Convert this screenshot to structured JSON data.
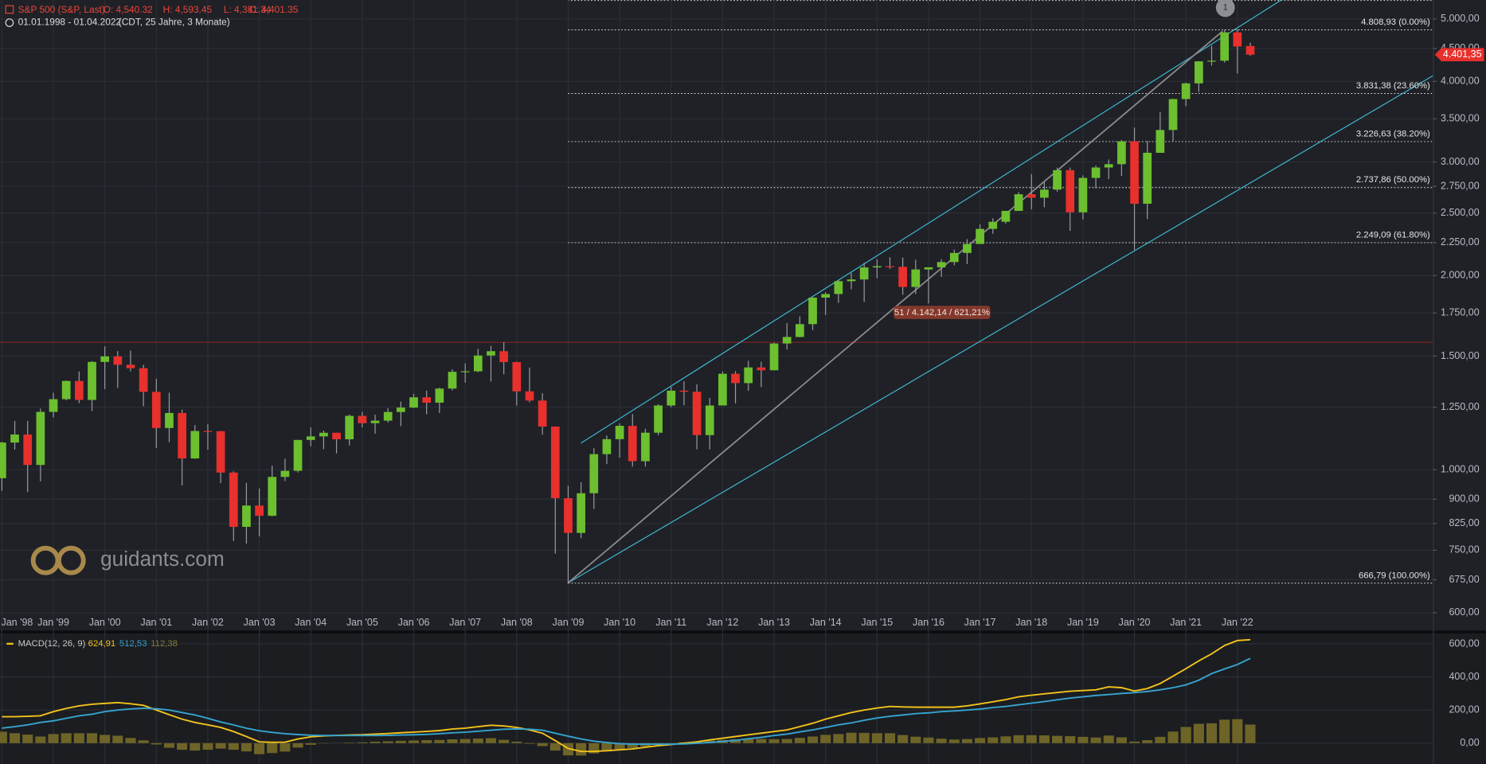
{
  "chart_data": [
    {
      "type": "candlestick",
      "title": "S&P 500 (S&P, Last)",
      "ohlc_labels": [
        "O: 4,540.32",
        "H: 4,593.45",
        "L: 4,381.34",
        "C: 4,401.35"
      ],
      "subtitle": "01.01.1998 - 01.04.2022",
      "subtitle_note": "(CDT, 25 Jahre, 3 Monate)",
      "watermark": "guidants.com",
      "marker_label": "1",
      "annotation": "51 / 4.142,14 / 621,21%",
      "log_y": true,
      "grid": true,
      "up_color": "#6cbf2e",
      "down_color": "#e8302c",
      "ylim": [
        565,
        5350
      ],
      "yticks": [
        {
          "value": 5000,
          "label": "5.000,00"
        },
        {
          "value": 4500,
          "label": "4.500,00"
        },
        {
          "value": 4000,
          "label": "4.000,00"
        },
        {
          "value": 3500,
          "label": "3.500,00"
        },
        {
          "value": 3000,
          "label": "3.000,00"
        },
        {
          "value": 2750,
          "label": "2.750,00"
        },
        {
          "value": 2500,
          "label": "2.500,00"
        },
        {
          "value": 2250,
          "label": "2.250,00"
        },
        {
          "value": 2000,
          "label": "2.000,00"
        },
        {
          "value": 1750,
          "label": "1.750,00"
        },
        {
          "value": 1500,
          "label": "1.500,00"
        },
        {
          "value": 1250,
          "label": "1.250,00"
        },
        {
          "value": 1000,
          "label": "1.000,00"
        },
        {
          "value": 900,
          "label": "900,00"
        },
        {
          "value": 825,
          "label": "825,00"
        },
        {
          "value": 750,
          "label": "750,00"
        },
        {
          "value": 675,
          "label": "675,00"
        },
        {
          "value": 600,
          "label": "600,00"
        }
      ],
      "levels": [
        {
          "value": 4808.93,
          "label": "4.808,93 (0.00%)"
        },
        {
          "value": 3831.38,
          "label": "3.831,38 (23.60%)"
        },
        {
          "value": 3226.63,
          "label": "3.226,63 (38.20%)"
        },
        {
          "value": 2737.86,
          "label": "2.737,86 (50.00%)"
        },
        {
          "value": 2249.09,
          "label": "2.249,09 (61.80%)"
        },
        {
          "value": 666.79,
          "label": "666,79 (100.00%)"
        }
      ],
      "hline": 1576,
      "current_price": {
        "value": 4401.35,
        "label": "4.401,35"
      },
      "categories": [
        "Jan '98",
        null,
        null,
        null,
        "Jan '99",
        null,
        null,
        null,
        "Jan '00",
        null,
        null,
        null,
        "Jan '01",
        null,
        null,
        null,
        "Jan '02",
        null,
        null,
        null,
        "Jan '03",
        null,
        null,
        null,
        "Jan '04",
        null,
        null,
        null,
        "Jan '05",
        null,
        null,
        null,
        "Jan '06",
        null,
        null,
        null,
        "Jan '07",
        null,
        null,
        null,
        "Jan '08",
        null,
        null,
        null,
        "Jan '09",
        null,
        null,
        null,
        "Jan '10",
        null,
        null,
        null,
        "Jan '11",
        null,
        null,
        null,
        "Jan '12",
        null,
        null,
        null,
        "Jan '13",
        null,
        null,
        null,
        "Jan '14",
        null,
        null,
        null,
        "Jan '15",
        null,
        null,
        null,
        "Jan '16",
        null,
        null,
        null,
        "Jan '17",
        null,
        null,
        null,
        "Jan '18",
        null,
        null,
        null,
        "Jan '19",
        null,
        null,
        null,
        "Jan '20",
        null,
        null,
        null,
        "Jan '21",
        null,
        null,
        null,
        "Jan '22",
        null
      ],
      "open": [
        970,
        1101.75,
        1133.84,
        1017.01,
        1229.23,
        1286.37,
        1372.71,
        1282.71,
        1469.25,
        1498.58,
        1454.6,
        1436.51,
        1320.28,
        1160.33,
        1224.42,
        1040.94,
        1148.08,
        1147.39,
        989.82,
        815.28,
        879.82,
        848.18,
        974.5,
        995.97,
        1111.92,
        1126.21,
        1140.84,
        1114.58,
        1211.92,
        1180.59,
        1191.33,
        1228.81,
        1248.29,
        1294.83,
        1270.2,
        1335.85,
        1418.3,
        1420.86,
        1503.35,
        1526.75,
        1468.36,
        1322.7,
        1280,
        1166.36,
        903.25,
        797.87,
        919.32,
        1057.08,
        1115.1,
        1169.43,
        1030.71,
        1141.2,
        1257.64,
        1325.83,
        1320.64,
        1131.42,
        1257.6,
        1408.47,
        1362.16,
        1440.67,
        1426.19,
        1569.19,
        1606.28,
        1681.55,
        1848.36,
        1872.34,
        1960.23,
        1972.29,
        2058.9,
        2067.89,
        2063.11,
        1920.03,
        2043.94,
        2059.74,
        2098.86,
        2168.27,
        2238.83,
        2362.72,
        2423.41,
        2519.36,
        2673.61,
        2640.87,
        2718.37,
        2913.98,
        2506.85,
        2834.4,
        2941.76,
        2976.74,
        3230.78,
        2584.59,
        3100.29,
        3363,
        3756.07,
        3972.89,
        4297.5,
        4307.54,
        4766.18,
        4540.32
      ],
      "high": [
        1105,
        1190,
        1190,
        1244,
        1316,
        1375,
        1420,
        1473,
        1553,
        1527,
        1530,
        1454,
        1383,
        1316,
        1239,
        1173,
        1176,
        1147,
        994,
        954,
        935,
        1015,
        1040,
        1112,
        1163,
        1150,
        1141,
        1218,
        1229,
        1217,
        1246,
        1275,
        1311,
        1326,
        1340,
        1431,
        1461,
        1540,
        1556,
        1576,
        1471,
        1440,
        1314,
        1167,
        944,
        956,
        1080,
        1130,
        1180,
        1220,
        1157,
        1263,
        1344,
        1371,
        1356,
        1292,
        1420,
        1422,
        1475,
        1470,
        1574,
        1688,
        1729,
        1850,
        1884,
        1968,
        2019,
        2093,
        2119,
        2135,
        2133,
        2116,
        2044,
        2120,
        2194,
        2278,
        2401,
        2454,
        2520,
        2695,
        2873,
        2791,
        2940,
        2941,
        2860,
        2964,
        3028,
        3247,
        3393,
        3233,
        3588,
        3760,
        3983,
        4302,
        4545,
        4808.93,
        4818,
        4593.45
      ],
      "low": [
        927,
        1074,
        923,
        959,
        1205,
        1281,
        1268,
        1233,
        1333,
        1339,
        1420,
        1254,
        1081,
        1103,
        945,
        1040,
        1074,
        953,
        775,
        768,
        788,
        847,
        960,
        990,
        1087,
        1076,
        1060,
        1090,
        1163,
        1137,
        1183,
        1168,
        1245,
        1219,
        1224,
        1327,
        1364,
        1416,
        1370,
        1406,
        1257,
        1272,
        1133,
        741,
        666.79,
        783,
        869,
        1020,
        1044,
        1011,
        1011,
        1131,
        1250,
        1259,
        1075,
        1075,
        1258,
        1267,
        1325,
        1343,
        1426,
        1536,
        1604,
        1646,
        1737,
        1814,
        1905,
        1820,
        1981,
        2048,
        1867,
        1872,
        1810,
        1991,
        2074,
        2084,
        2245,
        2322,
        2406,
        2520,
        2533,
        2553,
        2698,
        2346,
        2444,
        2728,
        2822,
        2855,
        2191,
        2447,
        3101,
        3233,
        3662,
        3853,
        4233,
        4278,
        4114,
        4381.34
      ],
      "close": [
        1101.75,
        1133.84,
        1017.01,
        1229.23,
        1286.37,
        1372.71,
        1282.71,
        1469.25,
        1498.58,
        1454.6,
        1436.51,
        1320.28,
        1160.33,
        1224.42,
        1040.94,
        1148.08,
        1147.39,
        989.82,
        815.28,
        879.82,
        848.18,
        974.5,
        995.97,
        1111.92,
        1126.21,
        1140.84,
        1114.58,
        1211.92,
        1180.59,
        1191.33,
        1228.81,
        1248.29,
        1294.83,
        1270.2,
        1335.85,
        1418.3,
        1420.86,
        1503.35,
        1526.75,
        1468.36,
        1322.7,
        1280,
        1166.36,
        903.25,
        797.87,
        919.32,
        1057.08,
        1115.1,
        1169.43,
        1030.71,
        1141.2,
        1257.64,
        1325.83,
        1320.64,
        1131.42,
        1257.6,
        1408.47,
        1362.16,
        1440.67,
        1426.19,
        1569.19,
        1606.28,
        1681.55,
        1848.36,
        1872.34,
        1960.23,
        1972.29,
        2058.9,
        2067.89,
        2063.11,
        1920.03,
        2043.94,
        2059.74,
        2098.86,
        2168.27,
        2238.83,
        2362.72,
        2423.41,
        2519.36,
        2673.61,
        2640.87,
        2718.37,
        2913.98,
        2506.85,
        2834.4,
        2941.76,
        2976.74,
        3230.78,
        2584.59,
        3100.29,
        3363,
        3756.07,
        3972.89,
        4297.5,
        4307.54,
        4766.18,
        4530.41,
        4401.35
      ]
    },
    {
      "type": "line",
      "title": "MACD(12, 26, 9)",
      "ylim": [
        -126,
        669
      ],
      "yticks": [
        {
          "value": 600,
          "label": "600,00"
        },
        {
          "value": 400,
          "label": "400,00"
        },
        {
          "value": 200,
          "label": "200,00"
        },
        {
          "value": 0,
          "label": "0,00"
        }
      ],
      "series": [
        {
          "color": "#f2c21b",
          "last_label": "624,91",
          "values": [
            160,
            160,
            162,
            165,
            190,
            210,
            225,
            235,
            240,
            245,
            238,
            228,
            200,
            172,
            145,
            125,
            110,
            95,
            70,
            40,
            8,
            5,
            6,
            25,
            38,
            44,
            47,
            49,
            51,
            55,
            58,
            63,
            67,
            71,
            76,
            85,
            91,
            100,
            108,
            104,
            95,
            80,
            60,
            15,
            -32,
            -50,
            -50,
            -46,
            -40,
            -35,
            -25,
            -15,
            -8,
            0,
            8,
            20,
            30,
            40,
            50,
            60,
            70,
            80,
            100,
            120,
            145,
            165,
            185,
            200,
            212,
            222,
            219,
            217,
            217,
            217,
            217,
            225,
            237,
            250,
            263,
            280,
            290,
            298,
            306,
            314,
            318,
            322,
            340,
            335,
            315,
            330,
            360,
            405,
            450,
            497,
            540,
            590,
            620,
            624.91
          ]
        },
        {
          "color": "#36a3cf",
          "last_label": "512,53",
          "values": [
            91,
            100,
            110,
            125,
            135,
            150,
            165,
            175,
            190,
            200,
            207,
            211,
            208,
            200,
            185,
            170,
            150,
            128,
            110,
            90,
            75,
            65,
            57,
            52,
            48,
            46,
            46,
            46,
            46,
            46,
            47,
            49,
            51,
            53,
            57,
            62,
            66,
            72,
            78,
            84,
            86,
            84,
            78,
            60,
            42,
            25,
            12,
            4,
            -3,
            -6,
            -6,
            -6,
            -6,
            -5,
            -1,
            4,
            10,
            17,
            26,
            35,
            46,
            55,
            68,
            80,
            95,
            110,
            122,
            138,
            152,
            162,
            170,
            178,
            183,
            190,
            195,
            200,
            206,
            215,
            222,
            232,
            242,
            251,
            262,
            272,
            280,
            288,
            294,
            300,
            305,
            312,
            322,
            335,
            352,
            380,
            420,
            448,
            475,
            512.53
          ]
        },
        {
          "type": "bar",
          "color": "#6e6427",
          "last_label": "112,38",
          "values": [
            69,
            60,
            52,
            40,
            55,
            60,
            60,
            60,
            50,
            45,
            31,
            17,
            -8,
            -28,
            -40,
            -45,
            -40,
            -33,
            -40,
            -50,
            -67,
            -60,
            -51,
            -27,
            -10,
            -2,
            1,
            3,
            5,
            9,
            11,
            14,
            16,
            18,
            19,
            23,
            25,
            28,
            30,
            20,
            9,
            -4,
            -18,
            -45,
            -74,
            -75,
            -62,
            -50,
            -37,
            -29,
            -19,
            -9,
            -2,
            5,
            9,
            16,
            20,
            23,
            24,
            25,
            24,
            25,
            32,
            40,
            50,
            55,
            63,
            62,
            60,
            60,
            49,
            39,
            34,
            27,
            22,
            25,
            31,
            35,
            41,
            48,
            48,
            47,
            44,
            42,
            38,
            34,
            46,
            35,
            10,
            18,
            38,
            70,
            98,
            117,
            120,
            142,
            145,
            112.38
          ]
        }
      ]
    }
  ]
}
